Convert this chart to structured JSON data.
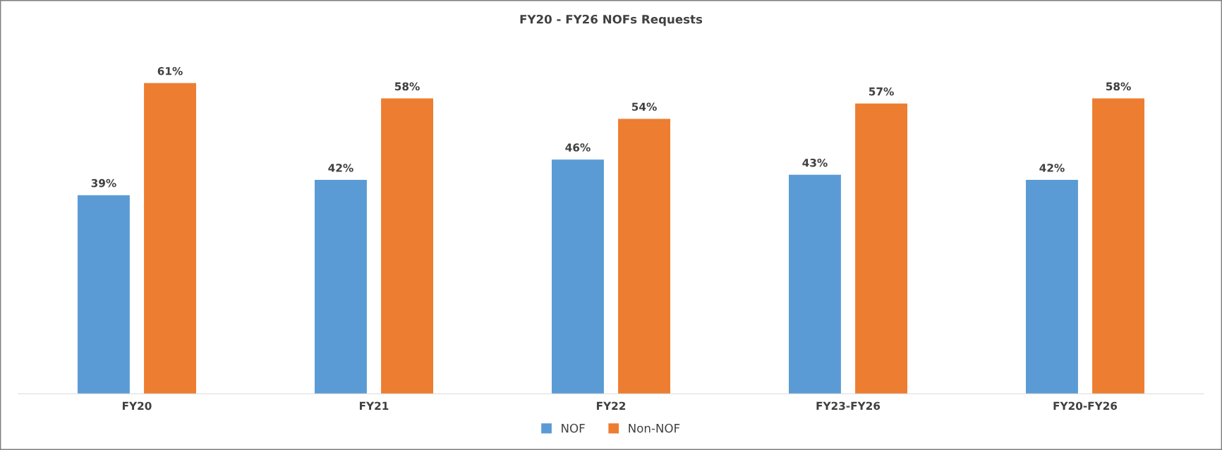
{
  "chart_data": {
    "type": "bar",
    "title": "FY20 - FY26 NOFs Requests",
    "categories": [
      "FY20",
      "FY21",
      "FY22",
      "FY23-FY26",
      "FY20-FY26"
    ],
    "series": [
      {
        "name": "NOF",
        "color": "#5b9bd5",
        "values": [
          39,
          42,
          46,
          43,
          42
        ],
        "value_labels": [
          "39%",
          "42%",
          "46%",
          "43%",
          "42%"
        ]
      },
      {
        "name": "Non-NOF",
        "color": "#ed7d31",
        "values": [
          61,
          58,
          54,
          57,
          58
        ],
        "value_labels": [
          "61%",
          "58%",
          "54%",
          "57%",
          "58%"
        ]
      }
    ],
    "grid": false,
    "legend": "bottom",
    "tick_labels": "x"
  }
}
